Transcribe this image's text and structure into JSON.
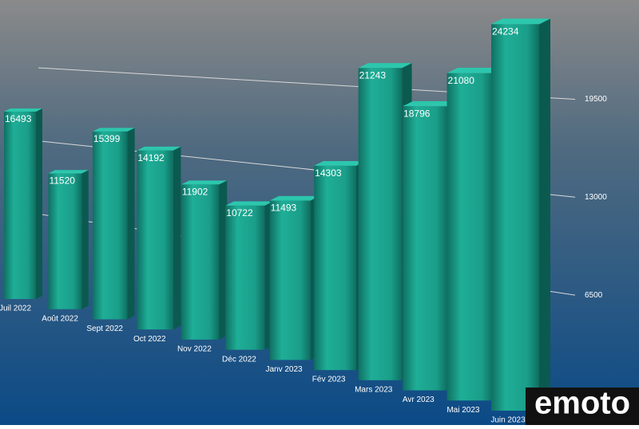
{
  "chart_data": {
    "type": "bar3d",
    "categories": [
      "Juil 2022",
      "Août 2022",
      "Sept 2022",
      "Oct 2022",
      "Nov 2022",
      "Déc 2022",
      "Janv 2023",
      "Fév 2023",
      "Mars 2023",
      "Avr 2023",
      "Mai 2023",
      "Juin 2023"
    ],
    "values": [
      16493,
      11520,
      15399,
      14192,
      11902,
      10722,
      11493,
      14303,
      21243,
      18796,
      21080,
      24234
    ],
    "color": "#1a9e8a",
    "ylim": [
      0,
      26000
    ],
    "yticks": [
      6500,
      13000,
      19500
    ],
    "grid": true
  },
  "logo": "emoto"
}
